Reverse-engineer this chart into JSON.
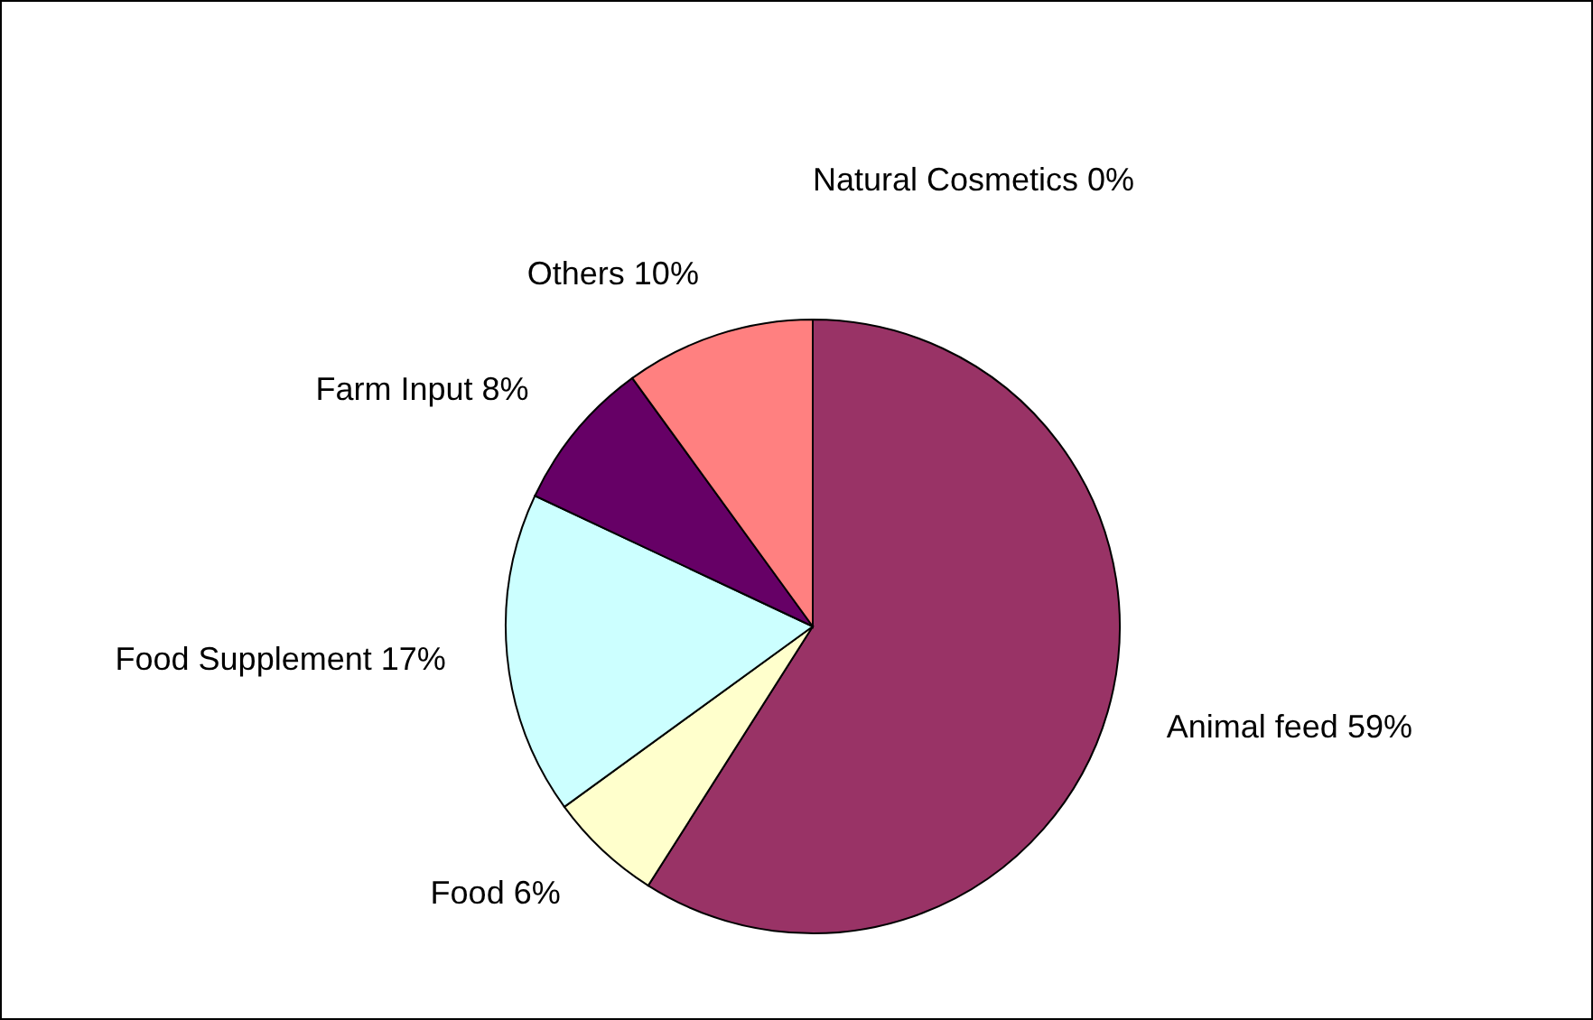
{
  "chart_data": {
    "type": "pie",
    "categories": [
      "Natural Cosmetics",
      "Animal feed",
      "Food",
      "Food Supplement",
      "Farm Input",
      "Others"
    ],
    "values": [
      0,
      59,
      6,
      17,
      8,
      10
    ],
    "value_labels": [
      "0%",
      "59%",
      "6%",
      "17%",
      "8%",
      "10%"
    ],
    "colors": [
      "#000000",
      "#993366",
      "#ffffcc",
      "#ccffff",
      "#660066",
      "#ff8080"
    ]
  }
}
